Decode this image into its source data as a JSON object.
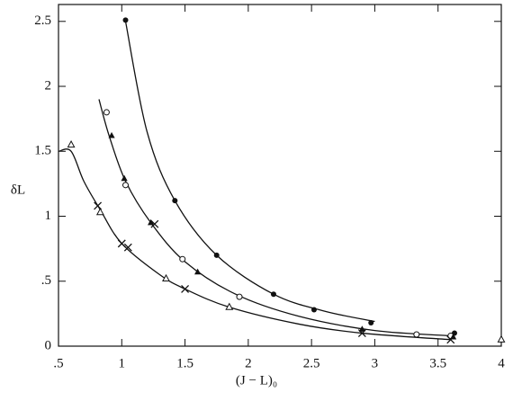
{
  "chart_data": {
    "type": "scatter",
    "x_label": "(J − L)₀",
    "y_label": "δL",
    "xlim": [
      0.5,
      4
    ],
    "ylim": [
      0,
      2.63
    ],
    "xticks": [
      {
        "value": 0.5,
        "label": ".5"
      },
      1,
      1.5,
      2,
      2.5,
      3,
      3.5,
      4
    ],
    "yticks": [
      0,
      {
        "value": 0.5,
        "label": ".5"
      },
      1,
      1.5,
      2,
      2.5
    ],
    "color": "#111111",
    "series": [
      {
        "marker": "filled-circle",
        "x": [
          1.03,
          1.42,
          1.75,
          2.2,
          2.52,
          2.97,
          3.63
        ],
        "values": [
          2.51,
          1.12,
          0.7,
          0.4,
          0.28,
          0.18,
          0.1
        ]
      },
      {
        "marker": "open-circle",
        "x": [
          0.88,
          1.03,
          1.48,
          1.93,
          3.33,
          3.6
        ],
        "values": [
          1.8,
          1.24,
          0.67,
          0.38,
          0.09,
          0.08
        ]
      },
      {
        "marker": "filled-triangle",
        "x": [
          0.92,
          1.02,
          1.23,
          1.6,
          2.9,
          3.62
        ],
        "values": [
          1.62,
          1.29,
          0.95,
          0.57,
          0.13,
          0.07
        ]
      },
      {
        "marker": "open-triangle",
        "x": [
          0.6,
          0.83,
          1.35,
          1.85,
          4.0
        ],
        "values": [
          1.55,
          1.03,
          0.52,
          0.3,
          0.05
        ]
      },
      {
        "marker": "cross",
        "x": [
          0.81,
          1.0,
          1.05,
          1.26,
          1.5,
          2.9,
          3.6
        ],
        "values": [
          1.08,
          0.79,
          0.76,
          0.94,
          0.44,
          0.1,
          0.05
        ]
      }
    ],
    "curves": [
      {
        "x": [
          1.03,
          1.2,
          1.42,
          1.75,
          2.2,
          2.6,
          3.0
        ],
        "values": [
          2.5,
          1.65,
          1.12,
          0.7,
          0.4,
          0.27,
          0.19
        ]
      },
      {
        "x": [
          0.82,
          0.9,
          1.03,
          1.23,
          1.5,
          1.9,
          2.4,
          3.0,
          3.6
        ],
        "values": [
          1.9,
          1.62,
          1.27,
          0.95,
          0.65,
          0.4,
          0.23,
          0.12,
          0.08
        ]
      },
      {
        "x": [
          0.5,
          0.6,
          0.7,
          0.83,
          1.0,
          1.3,
          1.5,
          1.85,
          2.4,
          2.9,
          3.6
        ],
        "values": [
          1.5,
          1.5,
          1.27,
          1.05,
          0.79,
          0.55,
          0.44,
          0.3,
          0.17,
          0.1,
          0.05
        ]
      }
    ]
  }
}
